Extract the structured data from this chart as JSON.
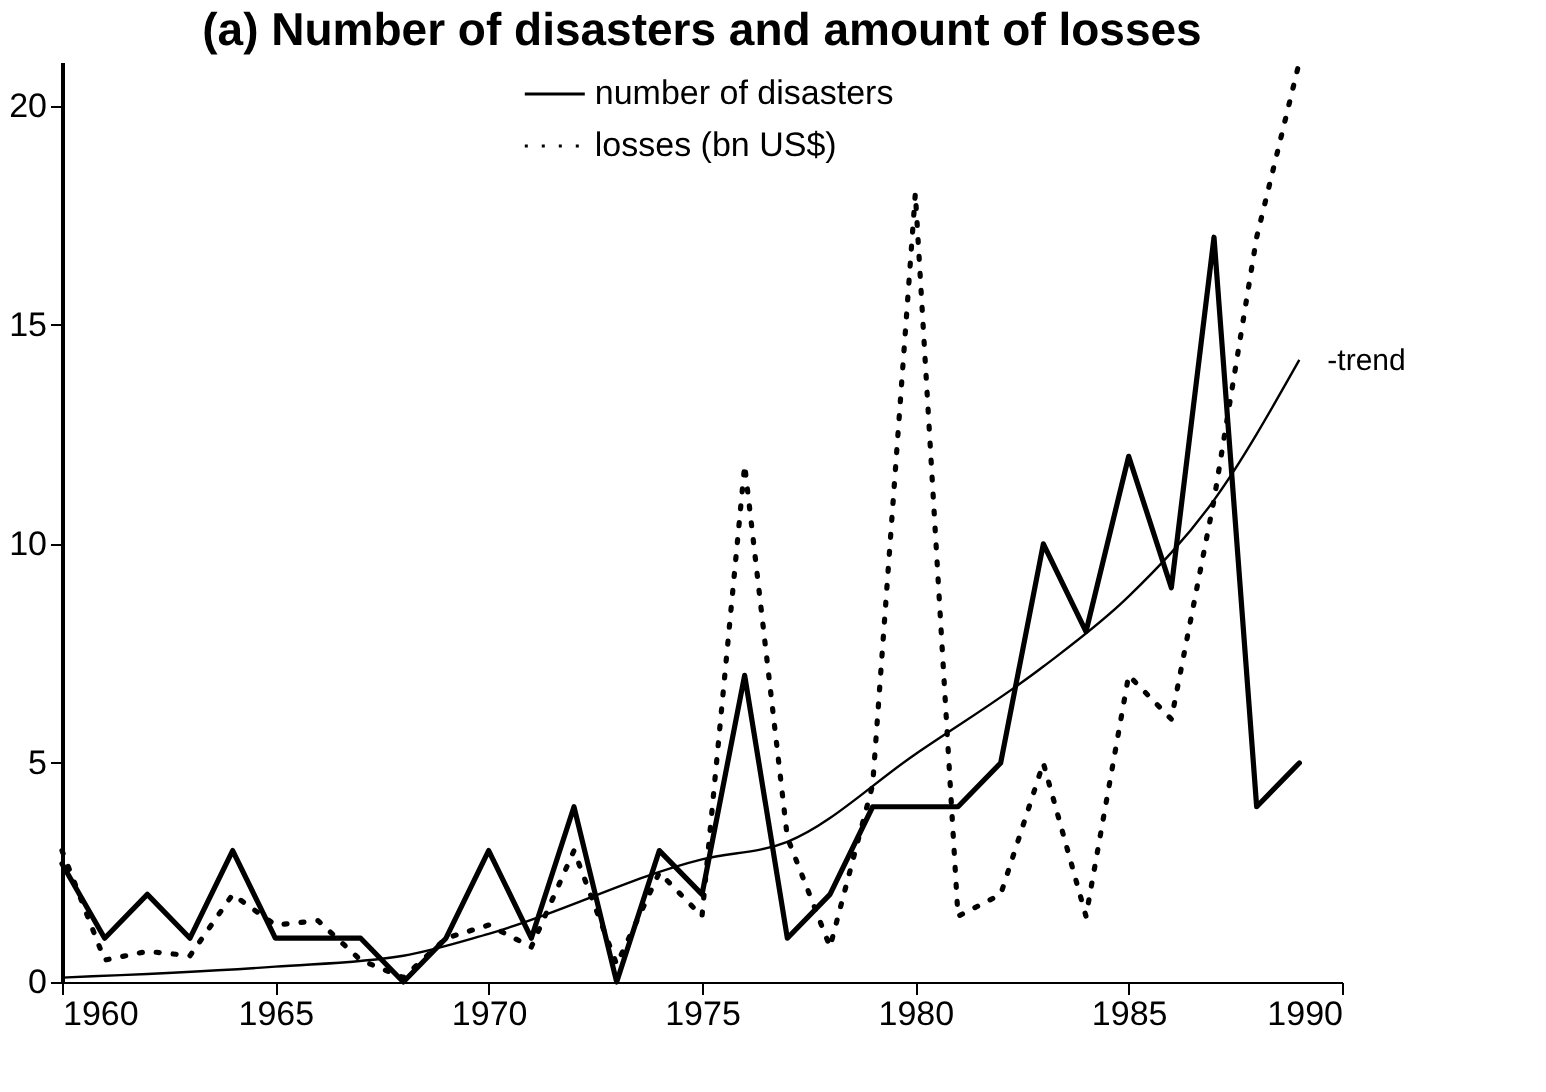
{
  "chart_data": {
    "type": "line",
    "title": "(a) Number of disasters and amount of losses",
    "x": [
      1960,
      1961,
      1962,
      1963,
      1964,
      1965,
      1966,
      1967,
      1968,
      1969,
      1970,
      1971,
      1972,
      1973,
      1974,
      1975,
      1976,
      1977,
      1978,
      1979,
      1980,
      1981,
      1982,
      1983,
      1984,
      1985,
      1986,
      1987,
      1988,
      1989
    ],
    "series": [
      {
        "name": "number of disasters",
        "color": "#000000",
        "line_style": "solid",
        "values": [
          2.7,
          1,
          2,
          1,
          3,
          1,
          1,
          1,
          0,
          1,
          3,
          1,
          4,
          0,
          3,
          2,
          7,
          1,
          2,
          4,
          4,
          4,
          5,
          10,
          8,
          12,
          9,
          17,
          4,
          5
        ]
      },
      {
        "name": "losses (bn US$)",
        "color": "#000000",
        "line_style": "dotted",
        "values": [
          3,
          0.5,
          0.7,
          0.6,
          2,
          1.3,
          1.4,
          0.5,
          0.1,
          1,
          1.3,
          0.8,
          3,
          0.4,
          2.5,
          1.5,
          11.8,
          3.3,
          0.8,
          4.5,
          18,
          1.5,
          2,
          5,
          1.5,
          7,
          6,
          11,
          17,
          21
        ]
      },
      {
        "name": "-trend",
        "color": "#000000",
        "line_style": "solid",
        "x": [
          1960,
          1965,
          1968,
          1970,
          1975,
          1977,
          1980,
          1983,
          1985,
          1987,
          1989
        ],
        "values": [
          0.1,
          0.35,
          0.6,
          1.1,
          2.8,
          3.2,
          5.2,
          7.2,
          8.8,
          11,
          14.2
        ]
      }
    ],
    "xlim": [
      1960,
      1990
    ],
    "xticks": [
      1960,
      1965,
      1970,
      1975,
      1980,
      1985,
      1990
    ],
    "ylim": [
      0,
      21
    ],
    "yticks": [
      0,
      5,
      10,
      15,
      20
    ],
    "grid": false,
    "legend": "top",
    "marker": "none"
  }
}
